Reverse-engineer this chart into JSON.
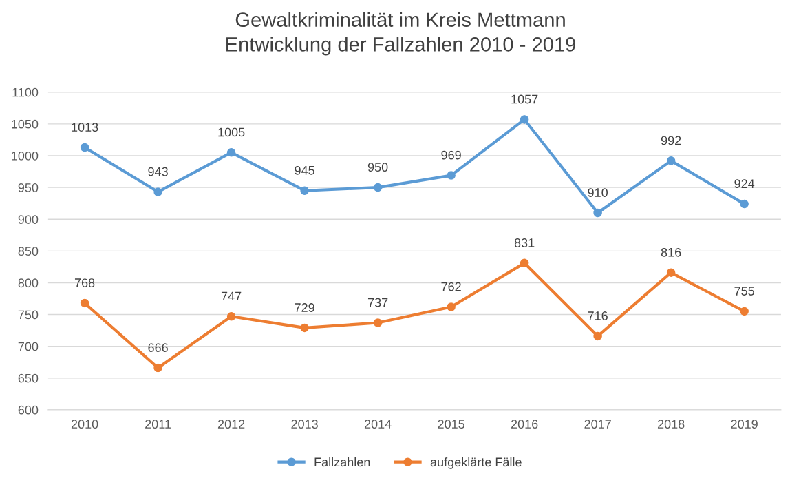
{
  "chart_data": {
    "type": "line",
    "title": "Gewaltkriminalität im Kreis Mettmann\nEntwicklung der Fallzahlen 2010 - 2019",
    "categories": [
      "2010",
      "2011",
      "2012",
      "2013",
      "2014",
      "2015",
      "2016",
      "2017",
      "2018",
      "2019"
    ],
    "series": [
      {
        "name": "Fallzahlen",
        "color": "#5b9bd5",
        "values": [
          1013,
          943,
          1005,
          945,
          950,
          969,
          1057,
          910,
          992,
          924
        ]
      },
      {
        "name": "aufgeklärte Fälle",
        "color": "#ed7d31",
        "values": [
          768,
          666,
          747,
          729,
          737,
          762,
          831,
          716,
          816,
          755
        ]
      }
    ],
    "ylim": [
      600,
      1100
    ],
    "yticks": [
      600,
      650,
      700,
      750,
      800,
      850,
      900,
      950,
      1000,
      1050,
      1100
    ],
    "grid": "y",
    "legend": "bottom",
    "marker": "circle",
    "line_style": "solid",
    "data_labels": true
  }
}
